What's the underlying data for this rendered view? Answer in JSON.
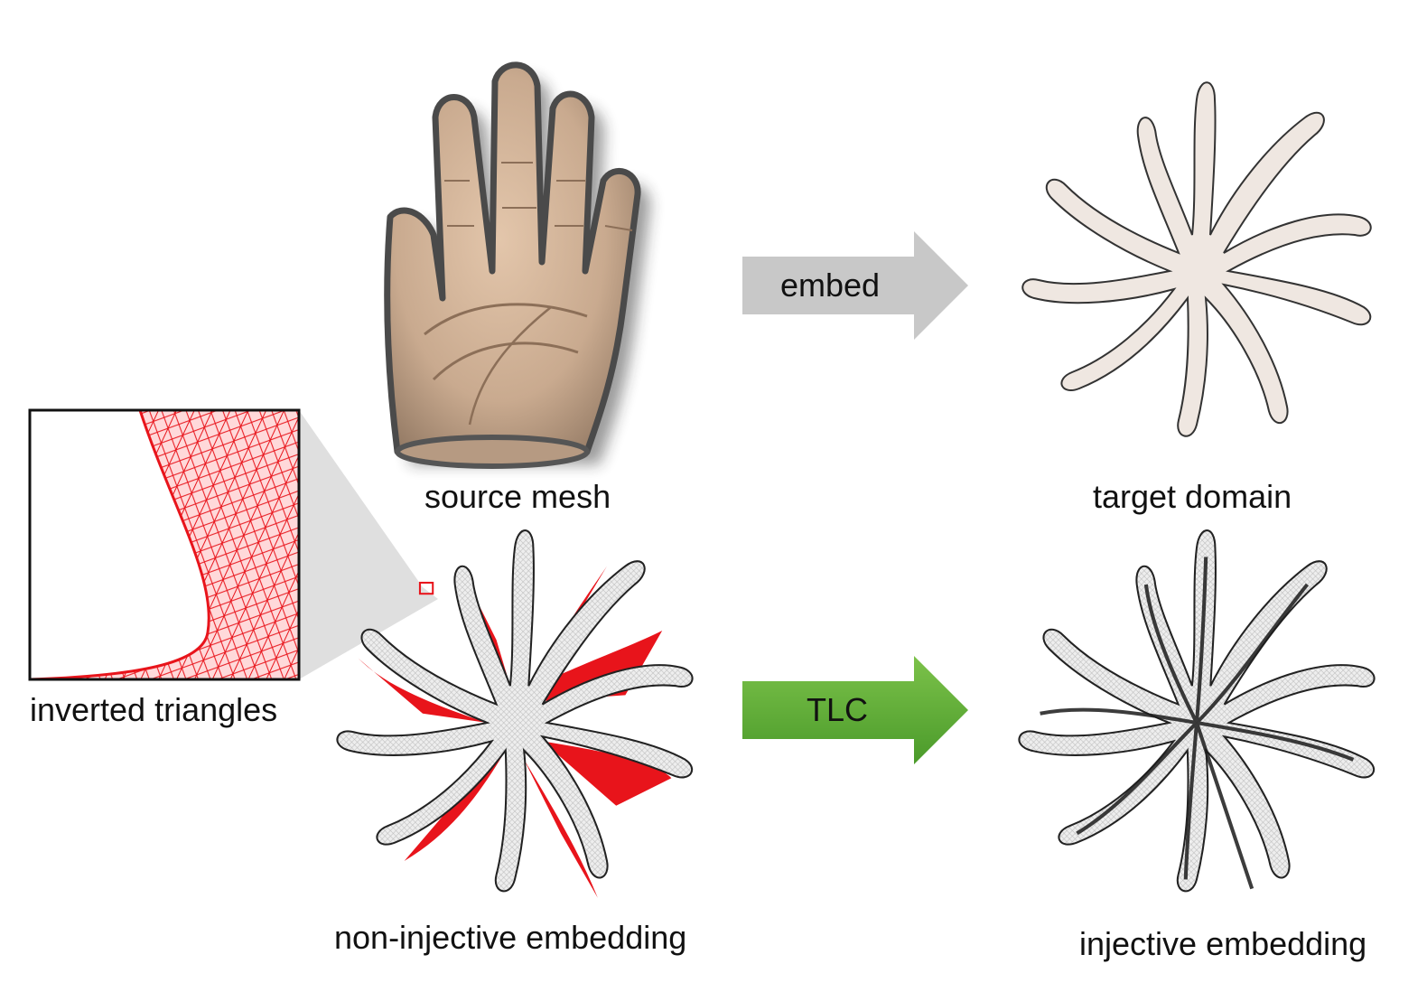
{
  "captions": {
    "source": "source mesh",
    "target": "target domain",
    "inverted": "inverted triangles",
    "non_injective": "non-injective embedding",
    "injective": "injective embedding"
  },
  "arrows": {
    "embed": {
      "label": "embed",
      "color": "#c8c8c8"
    },
    "tlc": {
      "label": "TLC",
      "color": "#5aa832"
    }
  },
  "colors": {
    "domain_fill": "#efe7e1",
    "inverted": "#e8141b",
    "mesh_gray": "#e6e6e6",
    "skin": "#c9aa8f"
  }
}
